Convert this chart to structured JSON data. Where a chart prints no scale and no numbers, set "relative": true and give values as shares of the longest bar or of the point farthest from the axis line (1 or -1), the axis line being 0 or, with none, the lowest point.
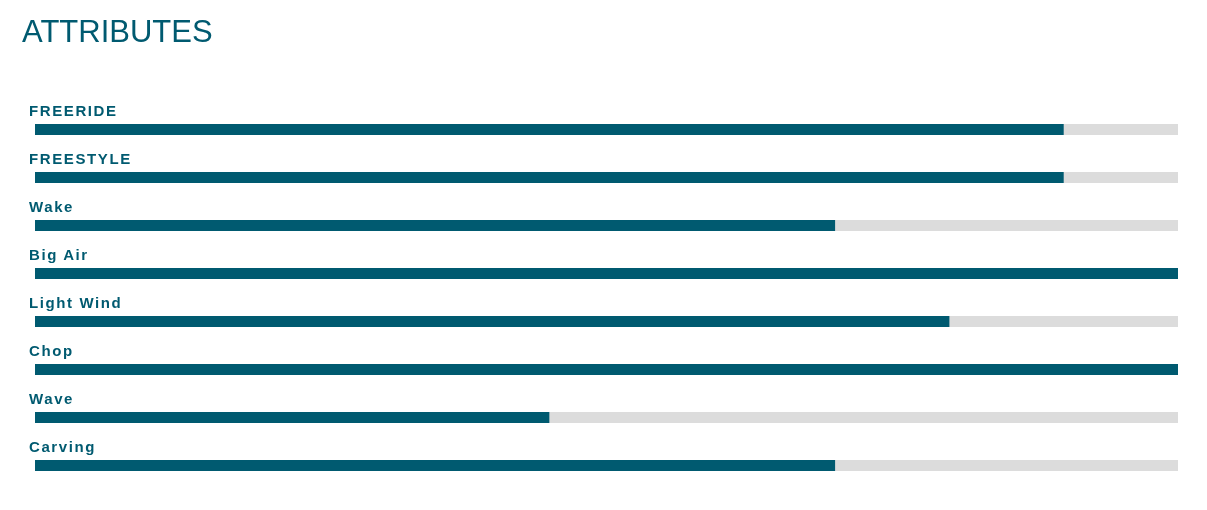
{
  "chart_data": {
    "type": "bar",
    "title": "ATTRIBUTES",
    "orientation": "horizontal",
    "relative": true,
    "categories": [
      "FREERIDE",
      "FREESTYLE",
      "Wake",
      "Big Air",
      "Light Wind",
      "Chop",
      "Wave",
      "Carving"
    ],
    "values": [
      0.9,
      0.9,
      0.7,
      1,
      0.8,
      1,
      0.45,
      0.7
    ],
    "color": "#005a70"
  }
}
